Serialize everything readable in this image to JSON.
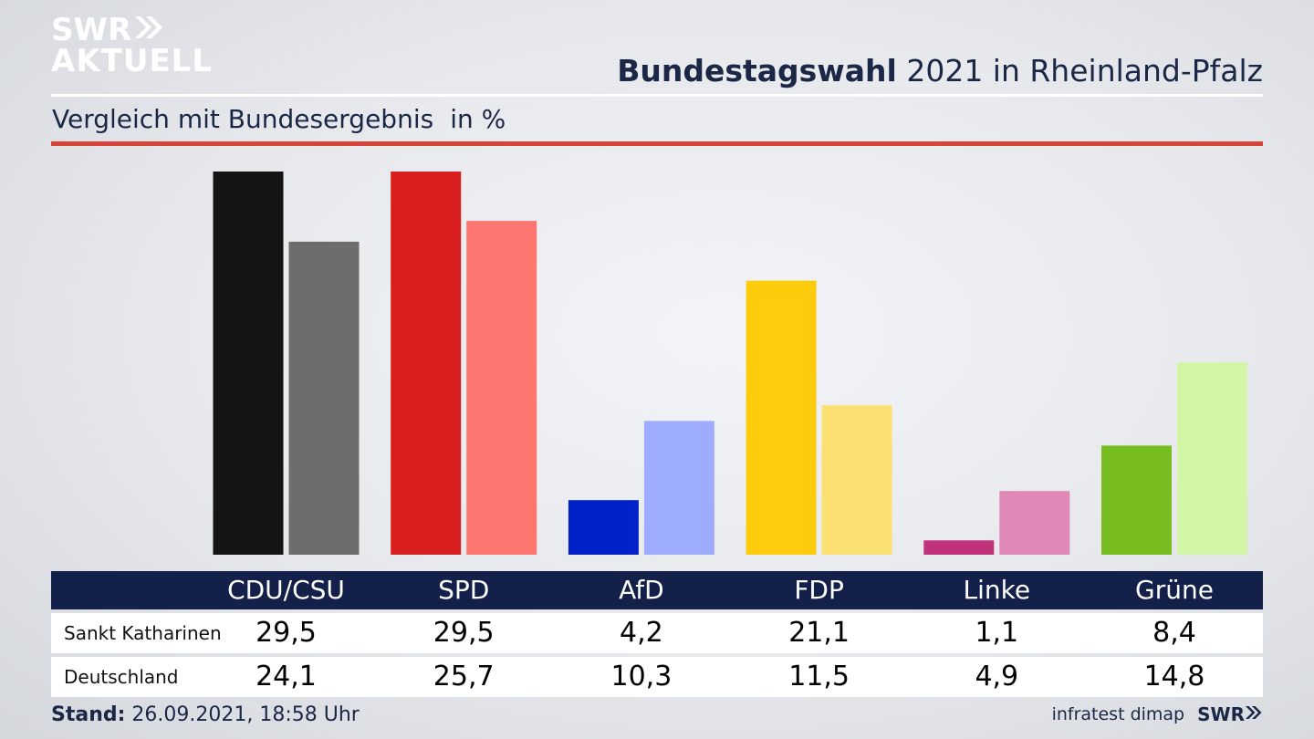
{
  "logo": {
    "line1": "SWR",
    "line2": "AKTUELL"
  },
  "header": {
    "title_bold": "Bundestagswahl",
    "title_rest": " 2021 in Rheinland-Pfalz",
    "subtitle": "Vergleich mit Bundesergebnis",
    "unit": "in %"
  },
  "footer": {
    "stand_label": "Stand:",
    "stand_value": " 26.09.2021, 18:58 Uhr",
    "source": "infratest dimap",
    "brand": "SWR"
  },
  "colors": {
    "primary": [
      "#141414",
      "#d81e1e",
      "#0022c8",
      "#fecb0d",
      "#c0337a",
      "#78bd1f"
    ],
    "secondary": [
      "#6f6d6b",
      "#fd7670",
      "#9eacfe",
      "#fde072",
      "#e088b6",
      "#d2f5a6"
    ],
    "header_bg": "#12204a",
    "accent_red": "#d9443a"
  },
  "chart_data": {
    "type": "bar",
    "categories": [
      "CDU/CSU",
      "SPD",
      "AfD",
      "FDP",
      "Linke",
      "Grüne"
    ],
    "series": [
      {
        "name": "Sankt Katharinen",
        "values": [
          29.5,
          29.5,
          4.2,
          21.1,
          1.1,
          8.4
        ]
      },
      {
        "name": "Deutschland",
        "values": [
          24.1,
          25.7,
          10.3,
          11.5,
          4.9,
          14.8
        ]
      }
    ],
    "value_labels": {
      "Sankt Katharinen": [
        "29,5",
        "29,5",
        "4,2",
        "21,1",
        "1,1",
        "8,4"
      ],
      "Deutschland": [
        "24,1",
        "25,7",
        "10,3",
        "11,5",
        "4,9",
        "14,8"
      ]
    },
    "title": "Bundestagswahl 2021 in Rheinland-Pfalz",
    "subtitle": "Vergleich mit Bundesergebnis",
    "ylabel": "in %",
    "ylim": [
      0,
      29.5
    ],
    "grid": false
  }
}
